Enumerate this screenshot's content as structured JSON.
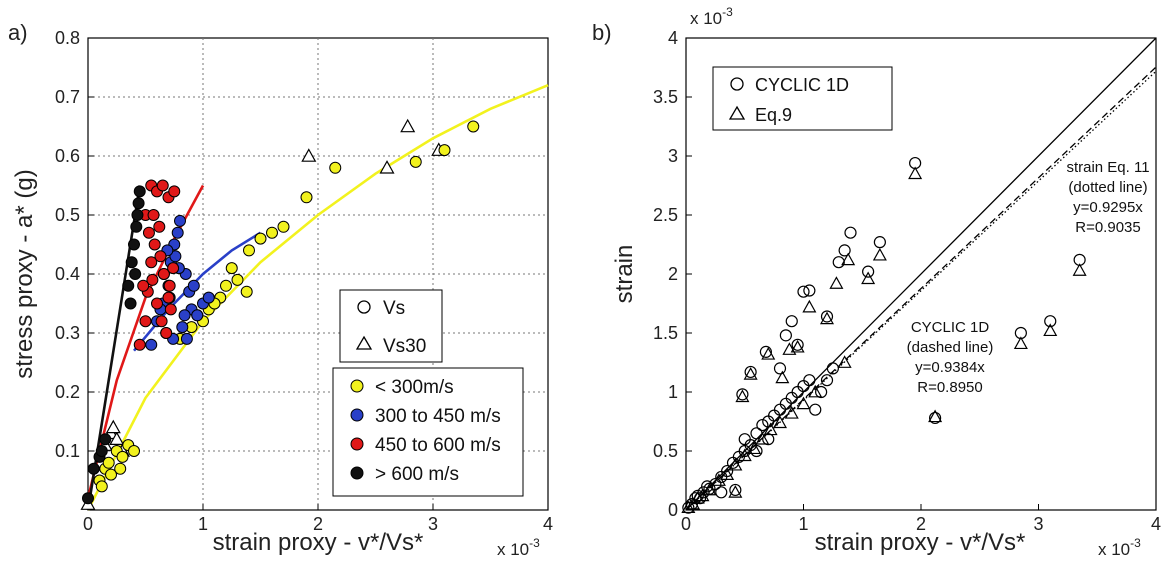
{
  "chart_data": [
    {
      "panel_label": "a)",
      "type": "scatter",
      "xlabel": "strain proxy - v*/Vs*",
      "ylabel": "stress proxy - a* (g)",
      "x_multiplier": "x 10",
      "x_multiplier_exp": "-3",
      "xlim": [
        0,
        4
      ],
      "ylim": [
        0,
        0.8
      ],
      "x_ticks": [
        "0",
        "1",
        "2",
        "3",
        "4"
      ],
      "y_ticks": [
        "0.1",
        "0.2",
        "0.3",
        "0.4",
        "0.5",
        "0.6",
        "0.7",
        "0.8"
      ],
      "grid": true,
      "legend_markers": {
        "circle": "Vs",
        "triangle": "Vs30"
      },
      "legend_colors": [
        {
          "label": "< 300m/s",
          "color": "#f2f21e"
        },
        {
          "label": "300 to 450 m/s",
          "color": "#2a40c8"
        },
        {
          "label": "450 to 600 m/s",
          "color": "#e01818"
        },
        {
          "label": "> 600 m/s",
          "color": "#111111"
        }
      ],
      "series": [
        {
          "name": "< 300m/s",
          "color": "#f2f21e",
          "circles": [
            [
              0.1,
              0.05
            ],
            [
              0.15,
              0.07
            ],
            [
              0.2,
              0.06
            ],
            [
              0.25,
              0.1
            ],
            [
              0.3,
              0.09
            ],
            [
              0.35,
              0.11
            ],
            [
              0.4,
              0.1
            ],
            [
              0.12,
              0.04
            ],
            [
              0.18,
              0.08
            ],
            [
              0.28,
              0.07
            ],
            [
              0.8,
              0.29
            ],
            [
              0.9,
              0.31
            ],
            [
              1.0,
              0.32
            ],
            [
              1.05,
              0.34
            ],
            [
              1.15,
              0.36
            ],
            [
              1.2,
              0.38
            ],
            [
              1.3,
              0.39
            ],
            [
              1.4,
              0.44
            ],
            [
              1.5,
              0.46
            ],
            [
              1.6,
              0.47
            ],
            [
              1.7,
              0.48
            ],
            [
              1.9,
              0.53
            ],
            [
              2.15,
              0.58
            ],
            [
              2.85,
              0.59
            ],
            [
              3.1,
              0.61
            ],
            [
              3.35,
              0.65
            ],
            [
              1.25,
              0.41
            ],
            [
              1.38,
              0.37
            ],
            [
              1.1,
              0.35
            ],
            [
              0.95,
              0.33
            ]
          ],
          "triangles": [
            [
              0.15,
              0.11
            ],
            [
              0.2,
              0.13
            ],
            [
              0.25,
              0.12
            ],
            [
              0.3,
              0.1
            ],
            [
              0.22,
              0.14
            ],
            [
              1.92,
              0.6
            ],
            [
              2.6,
              0.58
            ],
            [
              2.78,
              0.65
            ],
            [
              3.05,
              0.61
            ]
          ],
          "fit": [
            [
              0,
              0
            ],
            [
              0.5,
              0.19
            ],
            [
              1,
              0.32
            ],
            [
              1.5,
              0.42
            ],
            [
              2,
              0.5
            ],
            [
              2.5,
              0.57
            ],
            [
              3,
              0.63
            ],
            [
              3.5,
              0.68
            ],
            [
              4,
              0.72
            ]
          ]
        },
        {
          "name": "300 to 450 m/s",
          "color": "#2a40c8",
          "circles": [
            [
              0.55,
              0.28
            ],
            [
              0.6,
              0.32
            ],
            [
              0.65,
              0.35
            ],
            [
              0.7,
              0.38
            ],
            [
              0.72,
              0.42
            ],
            [
              0.75,
              0.45
            ],
            [
              0.78,
              0.47
            ],
            [
              0.8,
              0.49
            ],
            [
              0.85,
              0.4
            ],
            [
              0.9,
              0.34
            ],
            [
              0.95,
              0.33
            ],
            [
              1.0,
              0.35
            ],
            [
              1.05,
              0.36
            ],
            [
              0.68,
              0.3
            ],
            [
              0.74,
              0.29
            ],
            [
              0.82,
              0.31
            ],
            [
              0.88,
              0.37
            ],
            [
              0.66,
              0.4
            ],
            [
              0.71,
              0.36
            ],
            [
              0.79,
              0.41
            ],
            [
              0.84,
              0.33
            ],
            [
              0.92,
              0.38
            ],
            [
              0.76,
              0.43
            ],
            [
              0.63,
              0.34
            ],
            [
              0.86,
              0.29
            ],
            [
              0.69,
              0.44
            ]
          ],
          "triangles": [],
          "fit": [
            [
              0.4,
              0.27
            ],
            [
              0.7,
              0.34
            ],
            [
              1.0,
              0.4
            ],
            [
              1.25,
              0.44
            ],
            [
              1.5,
              0.47
            ]
          ]
        },
        {
          "name": "450 to 600 m/s",
          "color": "#e01818",
          "circles": [
            [
              0.45,
              0.28
            ],
            [
              0.5,
              0.32
            ],
            [
              0.52,
              0.37
            ],
            [
              0.55,
              0.42
            ],
            [
              0.5,
              0.5
            ],
            [
              0.55,
              0.55
            ],
            [
              0.6,
              0.54
            ],
            [
              0.65,
              0.55
            ],
            [
              0.7,
              0.53
            ],
            [
              0.75,
              0.54
            ],
            [
              0.62,
              0.48
            ],
            [
              0.58,
              0.45
            ],
            [
              0.66,
              0.4
            ],
            [
              0.7,
              0.36
            ],
            [
              0.72,
              0.34
            ],
            [
              0.56,
              0.39
            ],
            [
              0.6,
              0.35
            ],
            [
              0.64,
              0.32
            ],
            [
              0.68,
              0.3
            ],
            [
              0.53,
              0.47
            ],
            [
              0.57,
              0.5
            ],
            [
              0.63,
              0.43
            ],
            [
              0.48,
              0.38
            ],
            [
              0.71,
              0.38
            ],
            [
              0.74,
              0.41
            ]
          ],
          "triangles": [],
          "fit": [
            [
              0,
              0.02
            ],
            [
              0.25,
              0.22
            ],
            [
              0.5,
              0.36
            ],
            [
              0.75,
              0.46
            ],
            [
              1.0,
              0.55
            ]
          ]
        },
        {
          "name": "> 600 m/s",
          "color": "#111111",
          "circles": [
            [
              0.05,
              0.07
            ],
            [
              0.1,
              0.09
            ],
            [
              0.12,
              0.1
            ],
            [
              0.15,
              0.12
            ],
            [
              0.35,
              0.38
            ],
            [
              0.38,
              0.42
            ],
            [
              0.4,
              0.45
            ],
            [
              0.42,
              0.48
            ],
            [
              0.44,
              0.52
            ],
            [
              0.45,
              0.54
            ],
            [
              0.41,
              0.4
            ],
            [
              0.37,
              0.35
            ],
            [
              0.43,
              0.5
            ],
            [
              0.0,
              0.02
            ]
          ],
          "triangles": [
            [
              0.0,
              0.01
            ]
          ],
          "fit": [
            [
              0,
              0
            ],
            [
              0.45,
              0.55
            ]
          ]
        }
      ]
    },
    {
      "panel_label": "b)",
      "type": "scatter",
      "xlabel": "strain proxy - v*/Vs*",
      "ylabel": "strain",
      "x_multiplier": "x 10",
      "x_multiplier_exp": "-3",
      "y_multiplier": "x 10",
      "y_multiplier_exp": "-3",
      "xlim": [
        0,
        4
      ],
      "ylim": [
        0,
        4
      ],
      "x_ticks": [
        "0",
        "1",
        "2",
        "3",
        "4"
      ],
      "y_ticks": [
        "0",
        "0.5",
        "1",
        "1.5",
        "2",
        "2.5",
        "3",
        "3.5",
        "4"
      ],
      "grid": false,
      "legend": [
        "CYCLIC 1D",
        "Eq.9"
      ],
      "annotations": [
        {
          "lines": [
            "strain Eq. 11",
            "(dotted line)",
            "y=0.9295x",
            "R=0.9035"
          ]
        },
        {
          "lines": [
            "CYCLIC 1D",
            "(dashed line)",
            "y=0.9384x",
            "R=0.8950"
          ]
        }
      ],
      "lines": [
        {
          "style": "solid",
          "slope": 1
        },
        {
          "style": "dashed",
          "slope": 0.9384
        },
        {
          "style": "dotted",
          "slope": 0.9295
        }
      ],
      "points_cyclic1d": [
        [
          0.02,
          0.02
        ],
        [
          0.05,
          0.05
        ],
        [
          0.08,
          0.1
        ],
        [
          0.1,
          0.12
        ],
        [
          0.12,
          0.1
        ],
        [
          0.15,
          0.15
        ],
        [
          0.18,
          0.2
        ],
        [
          0.2,
          0.18
        ],
        [
          0.25,
          0.22
        ],
        [
          0.3,
          0.28
        ],
        [
          0.35,
          0.33
        ],
        [
          0.4,
          0.4
        ],
        [
          0.45,
          0.45
        ],
        [
          0.5,
          0.5
        ],
        [
          0.5,
          0.6
        ],
        [
          0.55,
          0.55
        ],
        [
          0.6,
          0.65
        ],
        [
          0.65,
          0.72
        ],
        [
          0.7,
          0.75
        ],
        [
          0.75,
          0.8
        ],
        [
          0.8,
          0.85
        ],
        [
          0.85,
          0.9
        ],
        [
          0.9,
          0.95
        ],
        [
          0.95,
          1.0
        ],
        [
          1.0,
          1.05
        ],
        [
          1.05,
          1.1
        ],
        [
          1.1,
          0.85
        ],
        [
          1.15,
          1.0
        ],
        [
          1.2,
          1.1
        ],
        [
          0.48,
          0.98
        ],
        [
          0.55,
          1.17
        ],
        [
          0.68,
          1.34
        ],
        [
          0.8,
          1.2
        ],
        [
          0.85,
          1.48
        ],
        [
          0.9,
          1.6
        ],
        [
          0.95,
          1.4
        ],
        [
          1.0,
          1.85
        ],
        [
          1.05,
          1.86
        ],
        [
          1.2,
          1.64
        ],
        [
          1.3,
          2.1
        ],
        [
          1.35,
          2.2
        ],
        [
          1.4,
          2.35
        ],
        [
          1.55,
          2.02
        ],
        [
          1.65,
          2.27
        ],
        [
          1.95,
          2.94
        ],
        [
          2.12,
          0.78
        ],
        [
          2.85,
          1.5
        ],
        [
          3.1,
          1.6
        ],
        [
          3.35,
          2.12
        ],
        [
          0.42,
          0.17
        ],
        [
          0.3,
          0.15
        ],
        [
          0.6,
          0.5
        ],
        [
          0.7,
          0.6
        ],
        [
          1.25,
          1.2
        ]
      ],
      "points_eq9": [
        [
          0.02,
          0.02
        ],
        [
          0.06,
          0.05
        ],
        [
          0.1,
          0.1
        ],
        [
          0.14,
          0.12
        ],
        [
          0.2,
          0.17
        ],
        [
          0.28,
          0.25
        ],
        [
          0.35,
          0.3
        ],
        [
          0.42,
          0.38
        ],
        [
          0.5,
          0.46
        ],
        [
          0.58,
          0.52
        ],
        [
          0.65,
          0.6
        ],
        [
          0.72,
          0.68
        ],
        [
          0.8,
          0.74
        ],
        [
          0.9,
          0.82
        ],
        [
          1.0,
          0.9
        ],
        [
          1.1,
          1.0
        ],
        [
          0.48,
          0.96
        ],
        [
          0.55,
          1.15
        ],
        [
          0.7,
          1.32
        ],
        [
          0.82,
          1.12
        ],
        [
          0.88,
          1.36
        ],
        [
          0.95,
          1.38
        ],
        [
          1.05,
          1.72
        ],
        [
          1.2,
          1.62
        ],
        [
          1.28,
          1.92
        ],
        [
          1.38,
          2.12
        ],
        [
          1.55,
          1.96
        ],
        [
          1.65,
          2.16
        ],
        [
          1.95,
          2.85
        ],
        [
          2.12,
          0.79
        ],
        [
          2.85,
          1.41
        ],
        [
          3.1,
          1.52
        ],
        [
          3.35,
          2.03
        ],
        [
          1.35,
          1.25
        ],
        [
          0.42,
          0.15
        ]
      ]
    }
  ]
}
